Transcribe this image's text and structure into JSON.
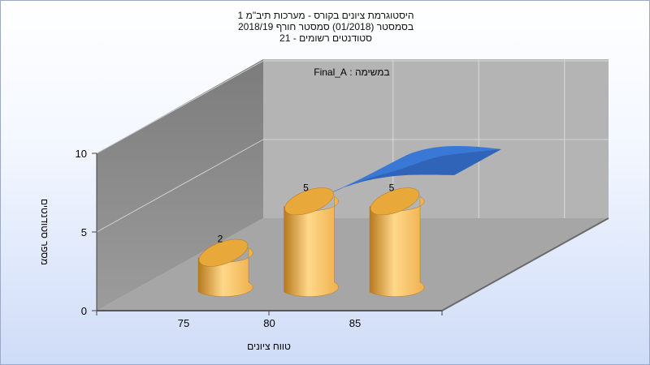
{
  "chart_data": {
    "type": "bar",
    "title_lines": [
      "היסטוגרמת ציונים בקורס - מערכות תיב\"מ 1",
      "בסמסטר  (01/2018)  סמסטר חורף  2018/19",
      "סטודנטים רשומים - 21"
    ],
    "annotation": "במשימה : Final_A",
    "xlabel": "טווח ציונים",
    "ylabel": "מספר סטודנטים",
    "categories": [
      "75",
      "80",
      "85"
    ],
    "values": [
      2,
      5,
      5
    ],
    "data_labels": [
      "2",
      "5",
      "5"
    ],
    "ylim": [
      0,
      10
    ],
    "yticks": [
      "0",
      "5",
      "10"
    ],
    "grid": true,
    "style": "3d",
    "colors": {
      "bar_light": "#ffd88a",
      "bar_mid": "#eeb04e",
      "bar_dark": "#b8791e",
      "bar_top": "#e8a83a",
      "curve": "#3a78d6",
      "curve_dark": "#2f64b8",
      "wall_back": "#b4b4b4",
      "wall_side": "#8e8e8e",
      "floor": "#a6a6a6"
    }
  }
}
